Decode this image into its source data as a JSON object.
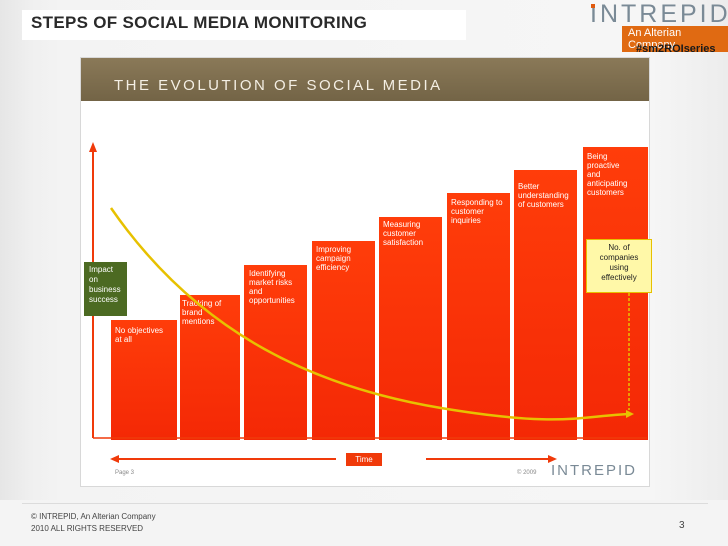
{
  "header": {
    "title": "STEPS OF SOCIAL MEDIA MONITORING",
    "logo_word": "INTREPID",
    "logo_sub": "An Alterian Company",
    "hashtag": "#sm2ROIseries"
  },
  "slide": {
    "title": "THE EVOLUTION OF SOCIAL MEDIA",
    "impact_label": "Impact\non\nbusiness\nsuccess",
    "companies_label": "No. of\ncompanies\nusing\neffectively",
    "time_label": "Time",
    "page_label": "Page 3",
    "copyright": "© 2009",
    "small_logo": "INTREPID",
    "steps": [
      "No objectives\nat all",
      "Tracking of\nbrand\nmentions",
      "Identifying\nmarket risks\nand\nopportunities",
      "Improving\ncampaign\nefficiency",
      "Measuring\ncustomer\nsatisfaction",
      "Responding to\ncustomer\ninquiries",
      "Better\nunderstanding\nof customers",
      "Being\nproactive\nand\nanticipating\ncustomers"
    ]
  },
  "footer": {
    "line1": "©  INTREPID, An Alterian Company",
    "line2": "2010 ALL RIGHTS RESERVED",
    "page_number": "3"
  },
  "colors": {
    "bar": "#f42805",
    "header_band": "#7d6c4d",
    "impact_box": "#4c6a22",
    "companies_box": "#fff8a8",
    "curve": "#e7c100",
    "accent": "#e06a12"
  }
}
